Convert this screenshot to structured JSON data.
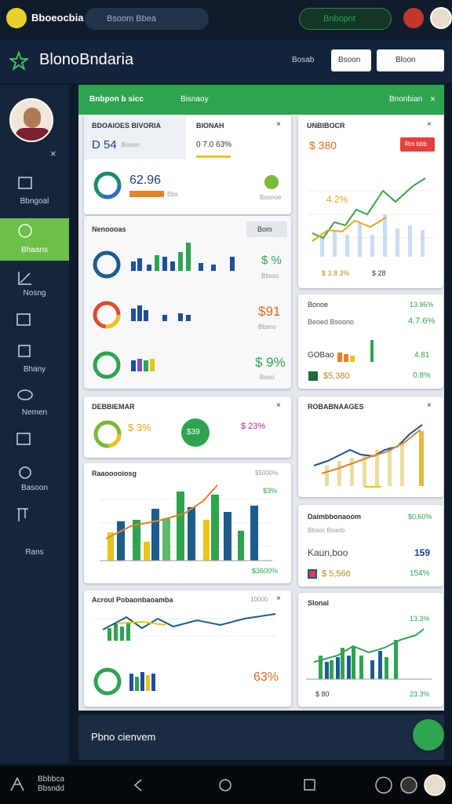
{
  "top_bar": {
    "brand": "Bboeocbia",
    "search": "Bsoom Bbea",
    "action": "Bnbopnt"
  },
  "header": {
    "title": "BlonoBndaria",
    "link": "Bosab",
    "button": "Bsoon",
    "search": "Bloon"
  },
  "sidebar": {
    "items": [
      "Bbngoal",
      "Bhaans",
      "Nosng",
      "Bhany",
      "Nemen",
      "Basoon",
      "Rans"
    ]
  },
  "banner": {
    "title": "Bnbpon b sicc",
    "subtitle": "Bisnaoy",
    "action": "Bnonbian"
  },
  "cards": {
    "summary": {
      "tab_1": "BDOAIOES BIVORIA",
      "tab_2": "BIONAH",
      "value": "D 54",
      "value_label": "Booon",
      "change": "0 7.0 63%",
      "ring_value": "62.96",
      "ring_label": "Bbs",
      "note": "Boonoe"
    },
    "metrics": {
      "title": "Nenoooas",
      "button": "Bom",
      "rows": [
        {
          "value": "$ %",
          "label": "Bbsso"
        },
        {
          "value": "$91",
          "label": "Bbsno"
        },
        {
          "value": "$ 9%",
          "label": "Booo"
        }
      ]
    },
    "trend": {
      "title": "UNBIBOCR",
      "value": "$ 380",
      "badge": "Rm bbb",
      "peak": "4.2%",
      "footer_1": "$ 3.8 3%",
      "footer_2": "$ 28"
    },
    "balance": {
      "title": "Bonoe",
      "rate": "13.96%",
      "row_label": "Beoed Bsoono",
      "row_value": "4.7.6%",
      "item": "GOBao",
      "item_value": "4.81",
      "total": "$5,380",
      "total_change": "0.8%"
    },
    "overview": {
      "title": "DEBBIEMAR",
      "ring_value": "$ 3%",
      "center": "$39",
      "side": "$ 23%"
    },
    "ranges": {
      "title": "ROBABNAAGES"
    },
    "combo": {
      "title": "Raaooooiosg",
      "corner": "$5000%",
      "legend": "$3%",
      "footer": "$3600%"
    },
    "detail": {
      "title": "Daimbbonaoom",
      "value": "$0,60%",
      "sub": "Bbsoc Bsanb",
      "name": "Kaun,boo",
      "count": "159",
      "amount": "$ 5,566",
      "rate": "154%"
    },
    "activity": {
      "title": "Acroul Pobaonbaoamba",
      "corner": "10000",
      "big": "63%"
    },
    "signal": {
      "title": "Slonai",
      "corner": "13.3%",
      "left": "$ 80",
      "right": "23.3%"
    }
  },
  "footer_panel": {
    "text": "Pbno cienvem"
  },
  "bottom_nav": {
    "label": "Bbbbca Bbsndd"
  }
}
